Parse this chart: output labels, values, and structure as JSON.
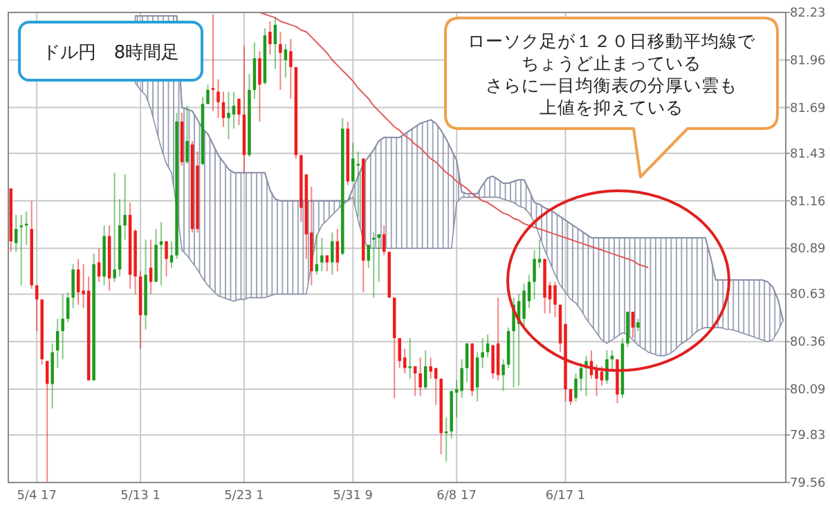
{
  "chart_data": {
    "type": "candlestick",
    "title": "ドル円　8時間足",
    "annotations": [
      "ローソク足が１２０日移動平均線で",
      "ちょうど止まっている",
      "さらに一目均衡表の分厚い雲も",
      "上値を抑えている"
    ],
    "categories": [
      null,
      null,
      null,
      null,
      null,
      "5/4 17",
      null,
      null,
      null,
      null,
      null,
      null,
      null,
      null,
      null,
      null,
      null,
      null,
      null,
      null,
      null,
      null,
      null,
      null,
      null,
      "5/13 1",
      null,
      null,
      null,
      null,
      null,
      null,
      null,
      null,
      null,
      null,
      null,
      null,
      null,
      null,
      null,
      null,
      null,
      null,
      null,
      "5/23 1",
      null,
      null,
      null,
      null,
      null,
      null,
      null,
      null,
      null,
      null,
      null,
      null,
      null,
      null,
      null,
      null,
      null,
      null,
      null,
      null,
      "5/31 9",
      null,
      null,
      null,
      null,
      null,
      null,
      null,
      null,
      null,
      null,
      null,
      null,
      null,
      null,
      null,
      null,
      null,
      null,
      null,
      "6/8 17",
      null,
      null,
      null,
      null,
      null,
      null,
      null,
      null,
      null,
      null,
      null,
      null,
      null,
      null,
      null,
      null,
      null,
      null,
      null,
      null,
      "6/17 1",
      null,
      null,
      null,
      null,
      null,
      null,
      null,
      null,
      null,
      null,
      null,
      null,
      null,
      null,
      null,
      null,
      null,
      null,
      null,
      null,
      null,
      null,
      null,
      null,
      null,
      null,
      null,
      null,
      null,
      null,
      null,
      null,
      null,
      null,
      null,
      null,
      null,
      null,
      null,
      null,
      null,
      null
    ],
    "ylim": [
      79.56,
      82.23
    ],
    "yticks": [
      79.56,
      79.83,
      80.09,
      80.36,
      80.63,
      80.89,
      81.16,
      81.43,
      81.69,
      81.96,
      82.23
    ],
    "grid": true,
    "series": [
      {
        "type": "line",
        "color": "#8890a8",
        "upper": [
          null,
          null,
          null,
          null,
          null,
          null,
          null,
          null,
          null,
          null,
          null,
          null,
          null,
          null,
          null,
          null,
          null,
          null,
          null,
          null,
          null,
          null,
          null,
          null,
          82.21,
          82.21,
          82.21,
          82.21,
          82.21,
          82.21,
          82.21,
          82.21,
          82.21,
          81.69,
          81.68,
          81.67,
          81.62,
          81.57,
          81.54,
          81.48,
          81.42,
          81.38,
          81.34,
          81.32,
          81.32,
          81.32,
          81.32,
          81.32,
          81.32,
          81.32,
          81.22,
          81.17,
          81.16,
          81.16,
          81.16,
          81.16,
          81.16,
          81.16,
          81.16,
          81.16,
          81.16,
          81.16,
          81.16,
          81.16,
          81.16,
          81.16,
          81.23,
          81.3,
          81.37,
          81.41,
          81.45,
          81.5,
          81.52,
          81.52,
          81.52,
          81.52,
          81.54,
          81.56,
          81.58,
          81.6,
          81.61,
          81.62,
          81.6,
          81.56,
          81.51,
          81.45,
          81.39,
          81.21,
          81.2,
          81.2,
          81.2,
          81.25,
          81.29,
          81.3,
          81.28,
          81.26,
          81.26,
          81.27,
          81.28,
          81.28,
          81.22,
          81.15,
          81.14,
          81.12,
          81.11,
          81.09,
          81.07,
          81.05,
          81.03,
          81.01,
          80.99,
          80.97,
          80.95,
          80.95,
          80.95,
          80.95,
          80.95,
          80.95,
          80.95,
          80.95,
          80.95,
          80.95,
          80.95,
          80.95,
          80.95,
          80.95,
          80.95,
          80.95,
          80.95,
          80.95,
          80.95,
          80.95,
          80.95,
          80.95,
          80.95,
          80.84,
          80.71,
          80.71,
          80.71,
          80.71,
          80.71,
          80.71,
          80.71,
          80.71,
          80.71,
          80.71,
          80.7,
          80.67,
          80.6,
          80.48
        ],
        "values": [
          null,
          null,
          null,
          null,
          null,
          null,
          null,
          null,
          null,
          null,
          null,
          null,
          null,
          null,
          null,
          null,
          null,
          null,
          null,
          null,
          null,
          null,
          null,
          null,
          82.21,
          82.21,
          82.21,
          82.21,
          82.21,
          82.21,
          82.21,
          82.21,
          82.21,
          81.69,
          81.68,
          81.67,
          81.62,
          81.57,
          81.54,
          81.48,
          81.42,
          81.38,
          81.34,
          81.32,
          81.32,
          81.32,
          81.32,
          81.32,
          81.32,
          81.32,
          81.22,
          81.17,
          81.16,
          81.16,
          81.16,
          81.16,
          81.16,
          81.16,
          81.16,
          81.16,
          81.16,
          81.16,
          81.16,
          81.16,
          81.16,
          81.16,
          81.23,
          81.3,
          81.37,
          81.41,
          81.45,
          81.5,
          81.52,
          81.52,
          81.52,
          81.52,
          81.54,
          81.56,
          81.58,
          81.6,
          81.61,
          81.62,
          81.6,
          81.56,
          81.51,
          81.45,
          81.39,
          81.21,
          81.2,
          81.2,
          81.2,
          81.25,
          81.29,
          81.3,
          81.28,
          81.26,
          81.26,
          81.27,
          81.28,
          81.28,
          81.22,
          81.15,
          81.14,
          81.12,
          81.11,
          81.09,
          81.07,
          81.05,
          81.03,
          81.01,
          80.99,
          80.97,
          80.95,
          80.95,
          80.95,
          80.95,
          80.95,
          80.95,
          80.95,
          80.95,
          80.95,
          80.95,
          80.95,
          80.95,
          80.95,
          80.95,
          80.95,
          80.95,
          80.95,
          80.95,
          80.95,
          80.95,
          80.95,
          80.95,
          80.95,
          80.84,
          80.71,
          80.71,
          80.71,
          80.71,
          80.71,
          80.71,
          80.71,
          80.71,
          80.71,
          80.71,
          80.7,
          80.67,
          80.6,
          80.48
        ],
        "lower": [
          null,
          null,
          null,
          null,
          null,
          null,
          null,
          null,
          null,
          null,
          null,
          null,
          null,
          null,
          null,
          null,
          null,
          null,
          null,
          null,
          null,
          null,
          null,
          null,
          81.83,
          81.79,
          81.76,
          81.68,
          81.57,
          81.46,
          81.37,
          81.32,
          81.12,
          80.88,
          80.85,
          80.81,
          80.77,
          80.72,
          80.68,
          80.65,
          80.62,
          80.61,
          80.6,
          80.59,
          80.6,
          80.6,
          80.61,
          80.61,
          80.61,
          80.61,
          80.62,
          80.63,
          80.63,
          80.63,
          80.63,
          80.63,
          80.63,
          80.63,
          80.8,
          80.96,
          81.02,
          81.05,
          81.08,
          81.11,
          81.14,
          81.16,
          81.18,
          81.05,
          80.94,
          80.89,
          80.89,
          80.89,
          80.89,
          80.89,
          80.89,
          80.89,
          80.89,
          80.89,
          80.89,
          80.89,
          80.89,
          80.89,
          80.89,
          80.89,
          80.89,
          80.89,
          81.15,
          81.18,
          81.18,
          81.18,
          81.18,
          81.18,
          81.18,
          81.18,
          81.18,
          81.17,
          81.16,
          81.15,
          81.13,
          81.12,
          81.09,
          81.04,
          80.96,
          80.88,
          80.81,
          80.74,
          80.68,
          80.64,
          80.6,
          80.58,
          80.54,
          80.49,
          80.45,
          80.41,
          80.37,
          80.35,
          80.37,
          80.39,
          80.41,
          80.4,
          80.37,
          80.34,
          80.32,
          80.3,
          80.29,
          80.28,
          80.28,
          80.29,
          80.31,
          80.34,
          80.36,
          80.38,
          80.41,
          80.43,
          80.44,
          80.44,
          80.44,
          80.44,
          80.43,
          80.43,
          80.42,
          80.41,
          80.4,
          80.39,
          80.38,
          80.37,
          80.36,
          80.37,
          80.42,
          80.48
        ]
      },
      {
        "type": "line",
        "color": "#e05a5a",
        "values": [
          null,
          null,
          null,
          null,
          null,
          null,
          null,
          null,
          null,
          null,
          null,
          null,
          null,
          null,
          null,
          null,
          null,
          null,
          null,
          null,
          null,
          null,
          null,
          null,
          null,
          null,
          null,
          null,
          null,
          null,
          null,
          null,
          null,
          null,
          null,
          null,
          null,
          null,
          null,
          null,
          null,
          null,
          null,
          null,
          null,
          null,
          null,
          null,
          82.23,
          82.22,
          82.21,
          82.2,
          82.18,
          82.17,
          82.16,
          82.15,
          82.13,
          82.12,
          82.09,
          82.06,
          82.03,
          82.0,
          81.96,
          81.93,
          81.9,
          81.87,
          81.84,
          81.8,
          81.77,
          81.74,
          81.7,
          81.67,
          81.64,
          81.61,
          81.58,
          81.56,
          81.53,
          81.51,
          81.48,
          81.46,
          81.43,
          81.4,
          81.38,
          81.35,
          81.32,
          81.3,
          81.27,
          81.25,
          81.23,
          81.2,
          81.18,
          81.16,
          81.15,
          81.13,
          81.11,
          81.09,
          81.08,
          81.06,
          81.05,
          81.03,
          81.02,
          81.01,
          81.0,
          80.99,
          80.98,
          80.97,
          80.96,
          80.95,
          80.94,
          80.93,
          80.92,
          80.91,
          80.9,
          80.89,
          80.88,
          80.87,
          80.86,
          80.85,
          80.84,
          80.83,
          80.82,
          80.8,
          80.79,
          80.78,
          null,
          null,
          null,
          null,
          null,
          null,
          null,
          null,
          null,
          null,
          null,
          null,
          null,
          null,
          null,
          null,
          null,
          null,
          null,
          null,
          null,
          null,
          null,
          null,
          null,
          null
        ]
      },
      {
        "type": "candlestick",
        "ohlc": [
          [
            81.23,
            81.23,
            80.87,
            80.93
          ],
          [
            80.92,
            81.08,
            80.87,
            81.0
          ],
          [
            81.01,
            81.08,
            80.68,
            81.02
          ],
          [
            81.02,
            81.1,
            80.91,
            81.03
          ],
          [
            81.0,
            81.16,
            80.66,
            80.68
          ],
          [
            80.68,
            80.68,
            80.42,
            80.6
          ],
          [
            80.6,
            80.6,
            80.23,
            80.26
          ],
          [
            80.25,
            80.25,
            79.56,
            80.12
          ],
          [
            80.12,
            80.35,
            79.98,
            80.3
          ],
          [
            80.31,
            80.49,
            80.21,
            80.42
          ],
          [
            80.42,
            80.63,
            80.26,
            80.49
          ],
          [
            80.49,
            80.64,
            80.47,
            80.61
          ],
          [
            80.61,
            80.8,
            80.55,
            80.77
          ],
          [
            80.77,
            80.83,
            80.57,
            80.64
          ],
          [
            80.65,
            80.8,
            80.55,
            80.63
          ],
          [
            80.65,
            80.73,
            80.14,
            80.14
          ],
          [
            80.14,
            80.86,
            80.14,
            80.8
          ],
          [
            80.81,
            80.89,
            80.7,
            80.73
          ],
          [
            80.73,
            81.02,
            80.68,
            80.96
          ],
          [
            80.96,
            81.02,
            80.65,
            80.72
          ],
          [
            80.72,
            81.32,
            80.7,
            80.77
          ],
          [
            80.77,
            81.17,
            80.73,
            81.02
          ],
          [
            81.02,
            81.31,
            80.94,
            81.08
          ],
          [
            81.08,
            81.15,
            80.66,
            80.74
          ],
          [
            80.99,
            81.0,
            80.63,
            80.73
          ],
          [
            80.73,
            80.76,
            80.32,
            80.51
          ],
          [
            80.51,
            80.94,
            80.43,
            80.74
          ],
          [
            80.78,
            80.94,
            80.63,
            80.7
          ],
          [
            80.7,
            81.0,
            80.7,
            80.91
          ],
          [
            80.91,
            81.04,
            80.68,
            80.93
          ],
          [
            80.93,
            80.93,
            80.73,
            80.83
          ],
          [
            80.81,
            80.93,
            80.78,
            80.85
          ],
          [
            80.85,
            81.66,
            80.83,
            81.61
          ],
          [
            81.61,
            81.66,
            81.36,
            81.38
          ],
          [
            81.38,
            81.7,
            81.37,
            81.5
          ],
          [
            81.48,
            81.5,
            80.98,
            81.0
          ],
          [
            81.36,
            81.44,
            80.98,
            81.0
          ],
          [
            81.37,
            81.75,
            81.36,
            81.71
          ],
          [
            81.71,
            81.82,
            81.71,
            81.79
          ],
          [
            81.8,
            82.22,
            81.67,
            81.79
          ],
          [
            81.78,
            81.85,
            81.63,
            81.72
          ],
          [
            81.72,
            81.78,
            81.58,
            81.63
          ],
          [
            81.63,
            81.78,
            81.51,
            81.66
          ],
          [
            81.65,
            81.78,
            81.57,
            81.7
          ],
          [
            81.74,
            81.74,
            81.59,
            81.65
          ],
          [
            81.65,
            82.04,
            81.32,
            81.42
          ],
          [
            81.42,
            81.88,
            81.41,
            81.79
          ],
          [
            81.79,
            82.06,
            81.74,
            81.97
          ],
          [
            81.97,
            82.01,
            81.61,
            81.82
          ],
          [
            81.83,
            82.14,
            81.82,
            82.1
          ],
          [
            82.12,
            82.18,
            81.99,
            82.05
          ],
          [
            82.05,
            82.2,
            81.91,
            82.16
          ],
          [
            82.05,
            82.12,
            81.79,
            82.0
          ],
          [
            81.96,
            82.05,
            81.86,
            82.02
          ],
          [
            82.01,
            82.08,
            81.74,
            81.92
          ],
          [
            81.92,
            81.92,
            81.4,
            81.42
          ],
          [
            81.42,
            81.42,
            81.04,
            81.12
          ],
          [
            81.31,
            81.31,
            80.83,
            80.97
          ],
          [
            80.98,
            81.24,
            80.68,
            80.76
          ],
          [
            80.76,
            80.97,
            80.74,
            80.8
          ],
          [
            80.81,
            80.95,
            80.76,
            80.85
          ],
          [
            80.85,
            80.85,
            80.76,
            80.81
          ],
          [
            80.81,
            80.98,
            80.74,
            80.93
          ],
          [
            80.93,
            81.0,
            80.76,
            80.81
          ],
          [
            80.86,
            81.63,
            80.85,
            81.57
          ],
          [
            81.57,
            81.61,
            81.25,
            81.27
          ],
          [
            81.27,
            81.49,
            81.27,
            81.4
          ],
          [
            81.36,
            81.44,
            81.07,
            81.37
          ],
          [
            81.4,
            81.4,
            80.64,
            80.82
          ],
          [
            80.82,
            80.91,
            80.78,
            80.91
          ],
          [
            80.94,
            80.98,
            80.61,
            80.95
          ],
          [
            80.95,
            80.97,
            80.7,
            80.97
          ],
          [
            80.97,
            81.02,
            80.85,
            80.87
          ],
          [
            80.87,
            80.87,
            80.61,
            80.61
          ],
          [
            80.61,
            80.61,
            80.04,
            80.38
          ],
          [
            80.38,
            80.38,
            80.21,
            80.25
          ],
          [
            80.27,
            80.32,
            80.18,
            80.21
          ],
          [
            80.21,
            80.38,
            80.15,
            80.22
          ],
          [
            80.22,
            80.22,
            80.05,
            80.18
          ],
          [
            80.18,
            80.27,
            80.05,
            80.1
          ],
          [
            80.1,
            80.31,
            80.09,
            80.22
          ],
          [
            80.22,
            80.27,
            80.15,
            80.19
          ],
          [
            80.21,
            80.21,
            80.0,
            80.15
          ],
          [
            80.15,
            80.15,
            79.72,
            79.84
          ],
          [
            79.84,
            79.93,
            79.68,
            79.85
          ],
          [
            79.85,
            80.08,
            79.81,
            80.08
          ],
          [
            80.07,
            80.14,
            79.93,
            80.09
          ],
          [
            80.08,
            80.26,
            80.04,
            80.21
          ],
          [
            80.21,
            80.35,
            80.13,
            80.35
          ],
          [
            80.35,
            80.35,
            80.05,
            80.08
          ],
          [
            80.1,
            80.3,
            80.02,
            80.27
          ],
          [
            80.27,
            80.38,
            80.21,
            80.3
          ],
          [
            80.3,
            80.4,
            80.27,
            80.35
          ],
          [
            80.34,
            80.34,
            80.15,
            80.18
          ],
          [
            80.35,
            80.61,
            80.14,
            80.17
          ],
          [
            80.17,
            80.26,
            80.08,
            80.23
          ],
          [
            80.23,
            80.44,
            80.21,
            80.42
          ],
          [
            80.42,
            80.61,
            80.1,
            80.57
          ],
          [
            80.46,
            80.63,
            80.11,
            80.59
          ],
          [
            80.49,
            80.69,
            80.45,
            80.65
          ],
          [
            80.59,
            80.74,
            80.55,
            80.7
          ],
          [
            80.7,
            80.88,
            80.6,
            80.83
          ],
          [
            80.81,
            80.94,
            80.78,
            80.83
          ],
          [
            80.83,
            80.83,
            80.52,
            80.61
          ],
          [
            80.68,
            80.7,
            80.52,
            80.6
          ],
          [
            80.68,
            80.7,
            80.5,
            80.57
          ],
          [
            80.57,
            80.57,
            80.3,
            80.35
          ],
          [
            80.46,
            80.46,
            80.02,
            80.09
          ],
          [
            80.09,
            80.09,
            80.0,
            80.02
          ],
          [
            80.04,
            80.18,
            80.02,
            80.15
          ],
          [
            80.15,
            80.24,
            80.08,
            80.21
          ],
          [
            80.21,
            80.28,
            80.05,
            80.25
          ],
          [
            80.25,
            80.31,
            80.15,
            80.17
          ],
          [
            80.21,
            80.23,
            80.05,
            80.15
          ],
          [
            80.19,
            80.22,
            80.11,
            80.14
          ],
          [
            80.14,
            80.31,
            80.12,
            80.26
          ],
          [
            80.26,
            80.31,
            80.2,
            80.28
          ],
          [
            80.26,
            80.26,
            80.01,
            80.06
          ],
          [
            80.06,
            80.38,
            80.04,
            80.35
          ],
          [
            80.35,
            80.53,
            80.33,
            80.53
          ],
          [
            80.53,
            80.53,
            80.38,
            80.44
          ],
          [
            80.44,
            80.49,
            80.42,
            80.47
          ],
          null,
          null,
          null,
          null,
          null,
          null,
          null,
          null,
          null,
          null,
          null,
          null,
          null,
          null,
          null,
          null,
          null,
          null,
          null,
          null,
          null,
          null,
          null,
          null,
          null,
          null,
          null,
          null
        ],
        "colors": [
          "#ee1c1c",
          "#1e9a1e",
          "#1e9a1e",
          "#1e9a1e",
          "#ee1c1c",
          "#ee1c1c",
          "#ee1c1c",
          "#ee1c1c",
          "#1e9a1e",
          "#1e9a1e",
          "#1e9a1e",
          "#1e9a1e",
          "#1e9a1e",
          "#ee1c1c",
          "#ee1c1c",
          "#ee1c1c",
          "#1e9a1e",
          "#ee1c1c",
          "#1e9a1e",
          "#ee1c1c",
          "#1e9a1e",
          "#1e9a1e",
          "#1e9a1e",
          "#ee1c1c",
          "#ee1c1c",
          "#ee1c1c",
          "#1e9a1e",
          "#ee1c1c",
          "#1e9a1e",
          "#1e9a1e",
          "#ee1c1c",
          "#1e9a1e",
          "#1e9a1e",
          "#ee1c1c",
          "#1e9a1e",
          "#ee1c1c",
          "#ee1c1c",
          "#1e9a1e",
          "#1e9a1e",
          "#ee1c1c",
          "#ee1c1c",
          "#ee1c1c",
          "#1e9a1e",
          "#1e9a1e",
          "#ee1c1c",
          "#ee1c1c",
          "#1e9a1e",
          "#1e9a1e",
          "#ee1c1c",
          "#1e9a1e",
          "#ee1c1c",
          "#1e9a1e",
          "#ee1c1c",
          "#1e9a1e",
          "#ee1c1c",
          "#ee1c1c",
          "#ee1c1c",
          "#ee1c1c",
          "#ee1c1c",
          "#1e9a1e",
          "#1e9a1e",
          "#ee1c1c",
          "#1e9a1e",
          "#ee1c1c",
          "#1e9a1e",
          "#ee1c1c",
          "#1e9a1e",
          "#1e9a1e",
          "#ee1c1c",
          "#1e9a1e",
          "#1e9a1e",
          "#1e9a1e",
          "#ee1c1c",
          "#ee1c1c",
          "#ee1c1c",
          "#ee1c1c",
          "#ee1c1c",
          "#1e9a1e",
          "#ee1c1c",
          "#ee1c1c",
          "#1e9a1e",
          "#ee1c1c",
          "#ee1c1c",
          "#ee1c1c",
          "#1e9a1e",
          "#1e9a1e",
          "#1e9a1e",
          "#1e9a1e",
          "#1e9a1e",
          "#ee1c1c",
          "#1e9a1e",
          "#1e9a1e",
          "#1e9a1e",
          "#ee1c1c",
          "#ee1c1c",
          "#1e9a1e",
          "#1e9a1e",
          "#1e9a1e",
          "#1e9a1e",
          "#1e9a1e",
          "#1e9a1e",
          "#1e9a1e",
          "#1e9a1e",
          "#ee1c1c",
          "#ee1c1c",
          "#ee1c1c",
          "#ee1c1c",
          "#ee1c1c",
          "#ee1c1c",
          "#1e9a1e",
          "#1e9a1e",
          "#1e9a1e",
          "#ee1c1c",
          "#ee1c1c",
          "#ee1c1c",
          "#1e9a1e",
          "#1e9a1e",
          "#ee1c1c",
          "#1e9a1e",
          "#1e9a1e",
          "#ee1c1c",
          "#1e9a1e",
          null,
          null,
          null,
          null,
          null,
          null,
          null,
          null,
          null,
          null,
          null,
          null,
          null,
          null,
          null,
          null,
          null,
          null,
          null,
          null,
          null,
          null,
          null,
          null,
          null,
          null,
          null,
          null
        ]
      }
    ]
  }
}
